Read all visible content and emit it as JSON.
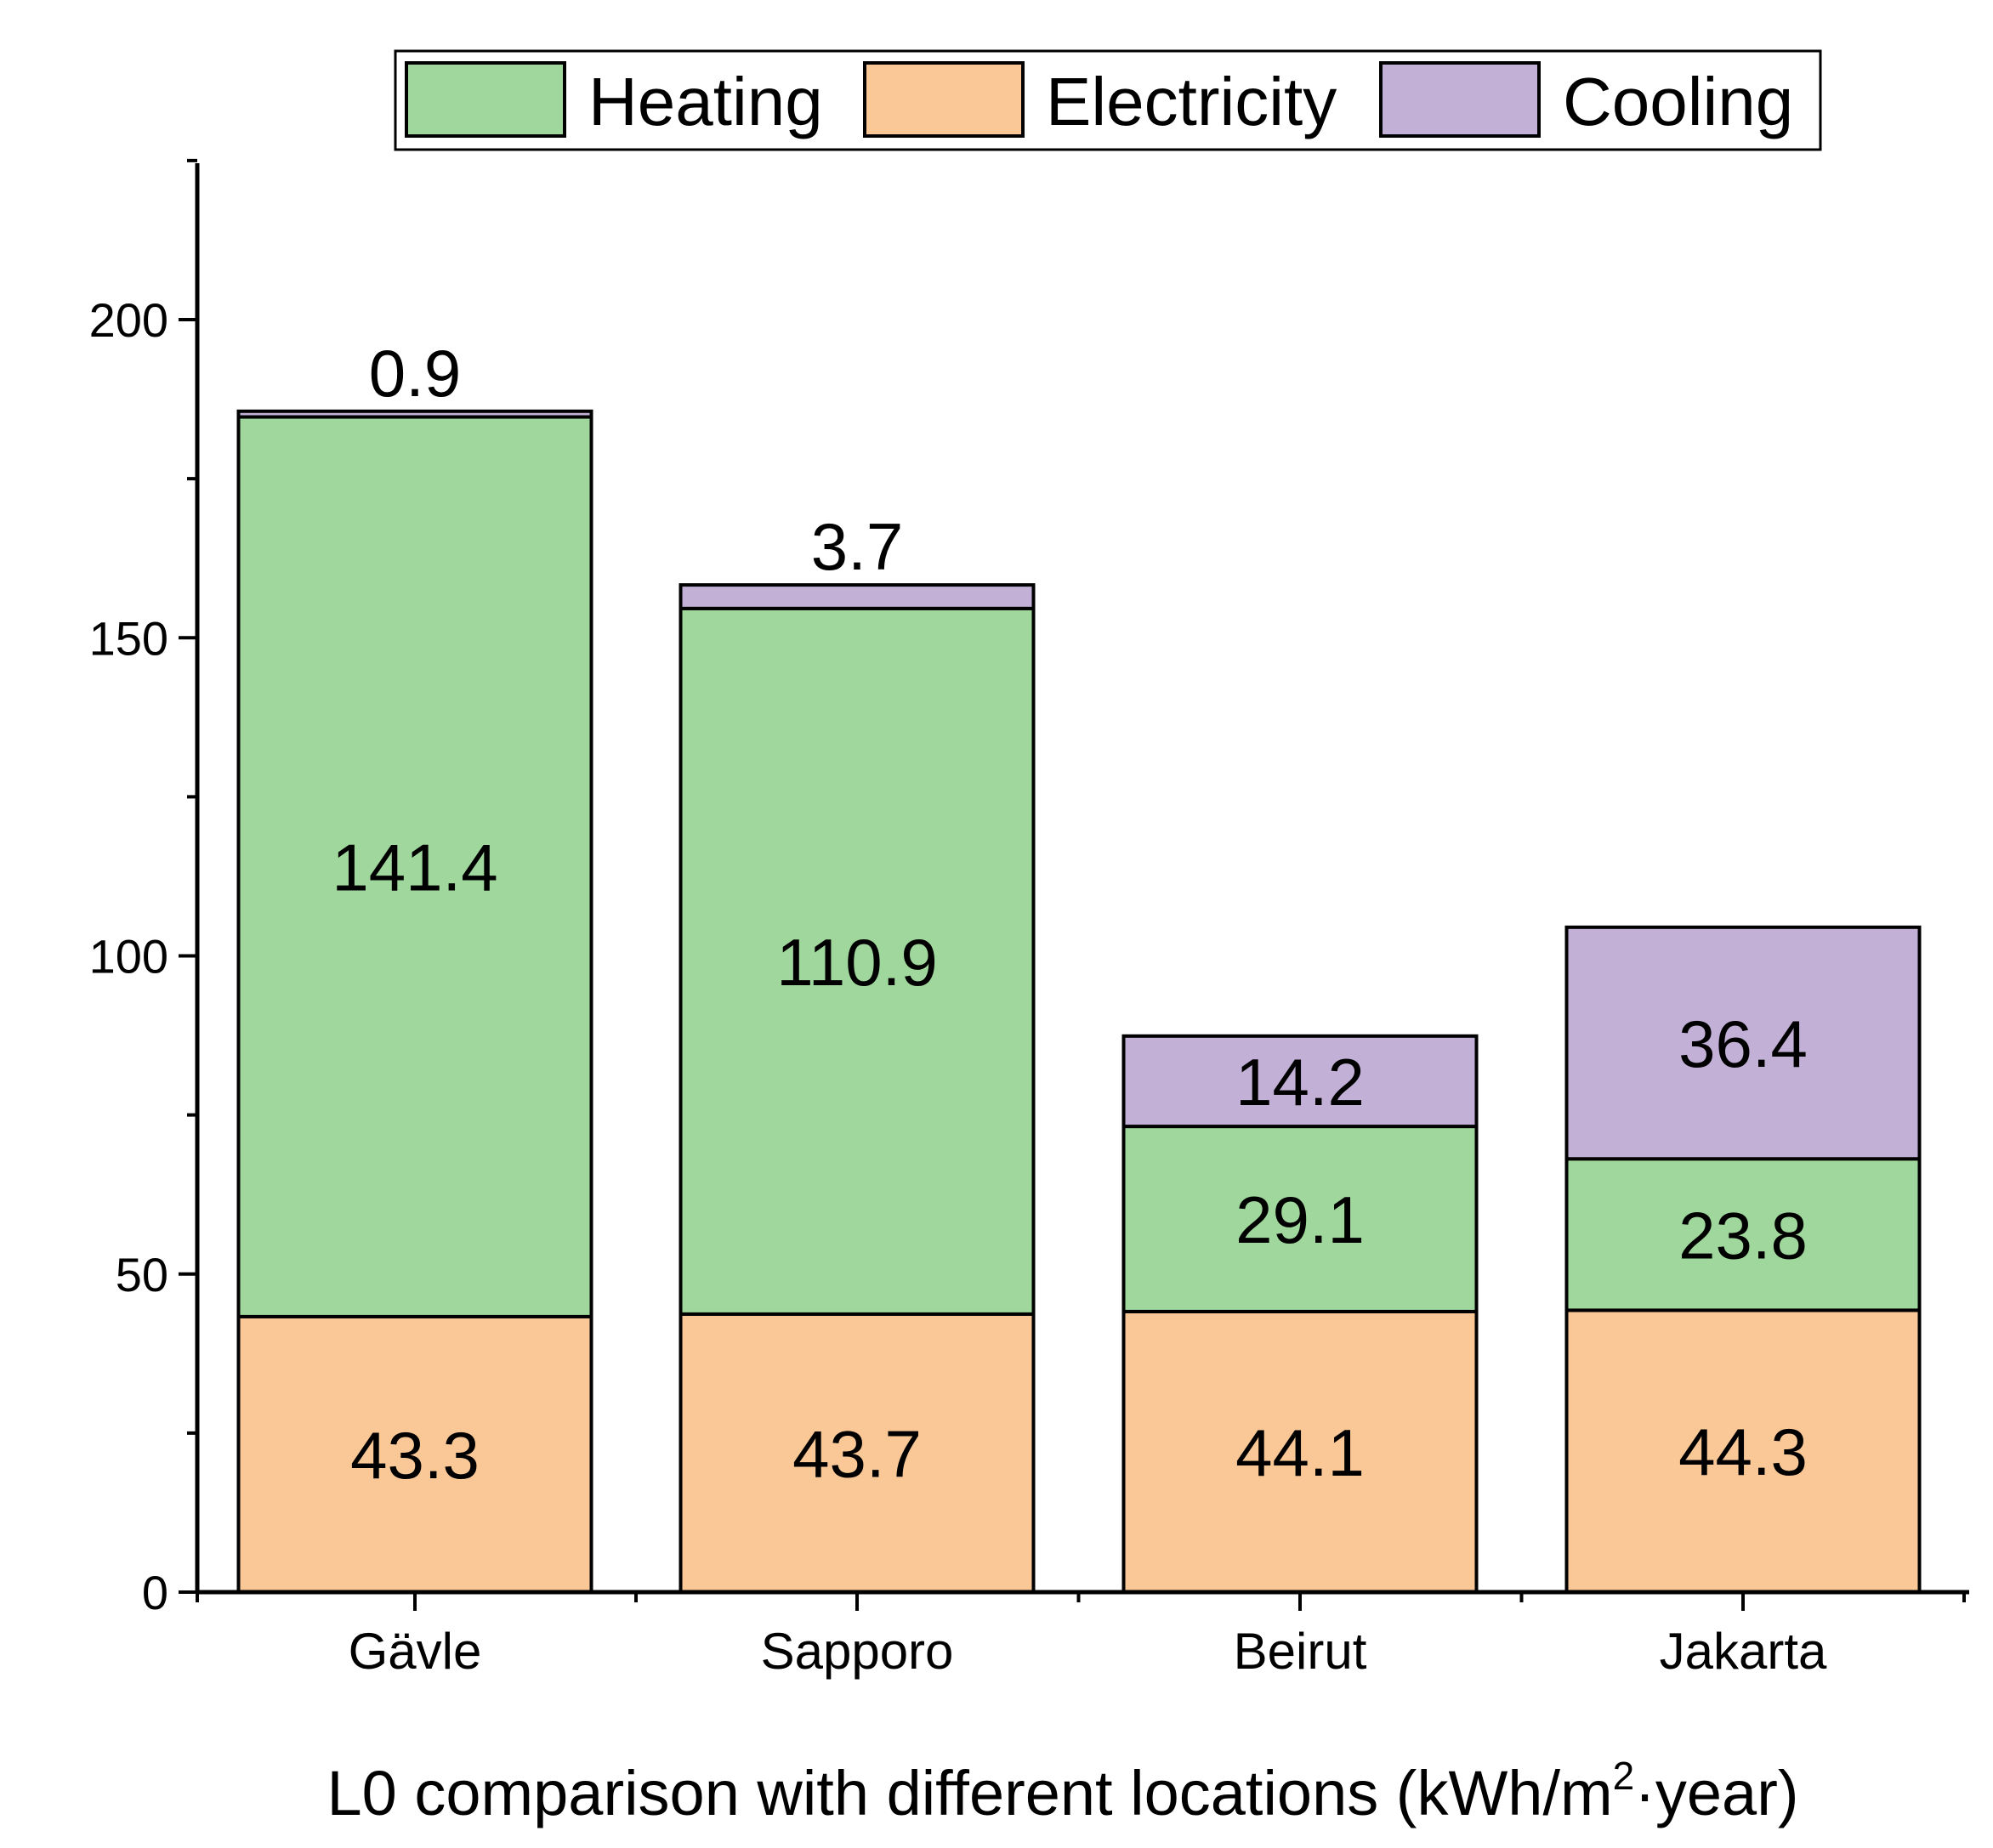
{
  "chart_data": {
    "type": "bar",
    "stacked": true,
    "title": "",
    "xlabel_main": "L0 comparison with different locations (kWh/m",
    "xlabel_sup": "2",
    "xlabel_tail": "·year)",
    "ylabel": "",
    "ylim": [
      0,
      225
    ],
    "yticks": [
      0,
      50,
      100,
      150,
      200
    ],
    "yticks_minor": [
      25,
      75,
      125,
      175,
      225
    ],
    "grid": false,
    "legend_position": "top",
    "categories": [
      "Gävle",
      "Sapporo",
      "Beirut",
      "Jakarta"
    ],
    "series": [
      {
        "name": "Electricity",
        "color": "#F9C896",
        "values": [
          43.3,
          43.7,
          44.1,
          44.3
        ],
        "labels": [
          "43.3",
          "43.7",
          "44.1",
          "44.3"
        ]
      },
      {
        "name": "Heating",
        "color": "#9FD79D",
        "values": [
          141.4,
          110.9,
          29.1,
          23.8
        ],
        "labels": [
          "141.4",
          "110.9",
          "29.1",
          "23.8"
        ]
      },
      {
        "name": "Cooling",
        "color": "#C2B0D6",
        "values": [
          0.9,
          3.7,
          14.2,
          36.4
        ],
        "labels": [
          "0.9",
          "3.7",
          "14.2",
          "36.4"
        ]
      }
    ],
    "legend_order": [
      "Heating",
      "Electricity",
      "Cooling"
    ]
  }
}
